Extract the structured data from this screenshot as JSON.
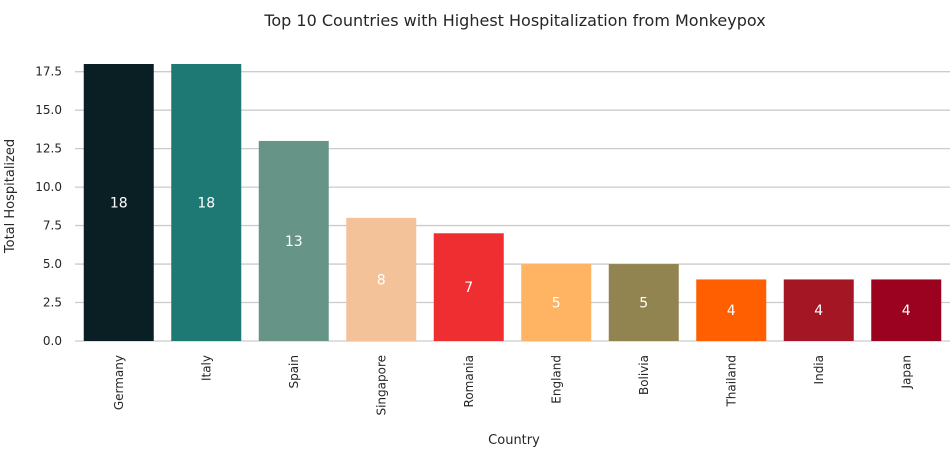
{
  "chart_data": {
    "type": "bar",
    "title": "Top 10 Countries with Highest Hospitalization from Monkeypox",
    "xlabel": "Country",
    "ylabel": "Total Hospitalized",
    "categories": [
      "Germany",
      "Italy",
      "Spain",
      "Singapore",
      "Romania",
      "England",
      "Bolivia",
      "Thailand",
      "India",
      "Japan"
    ],
    "values": [
      18,
      18,
      13,
      8,
      7,
      5,
      5,
      4,
      4,
      4
    ],
    "colors": [
      "#0a1f24",
      "#1e7873",
      "#669587",
      "#f3c298",
      "#ee2e31",
      "#ffb464",
      "#918450",
      "#ff5f00",
      "#a41623",
      "#9b0220"
    ],
    "ylim": [
      0,
      18
    ],
    "yticks": [
      0.0,
      2.5,
      5.0,
      7.5,
      10.0,
      12.5,
      15.0,
      17.5
    ],
    "grid": "horizontal",
    "legend": "none"
  }
}
